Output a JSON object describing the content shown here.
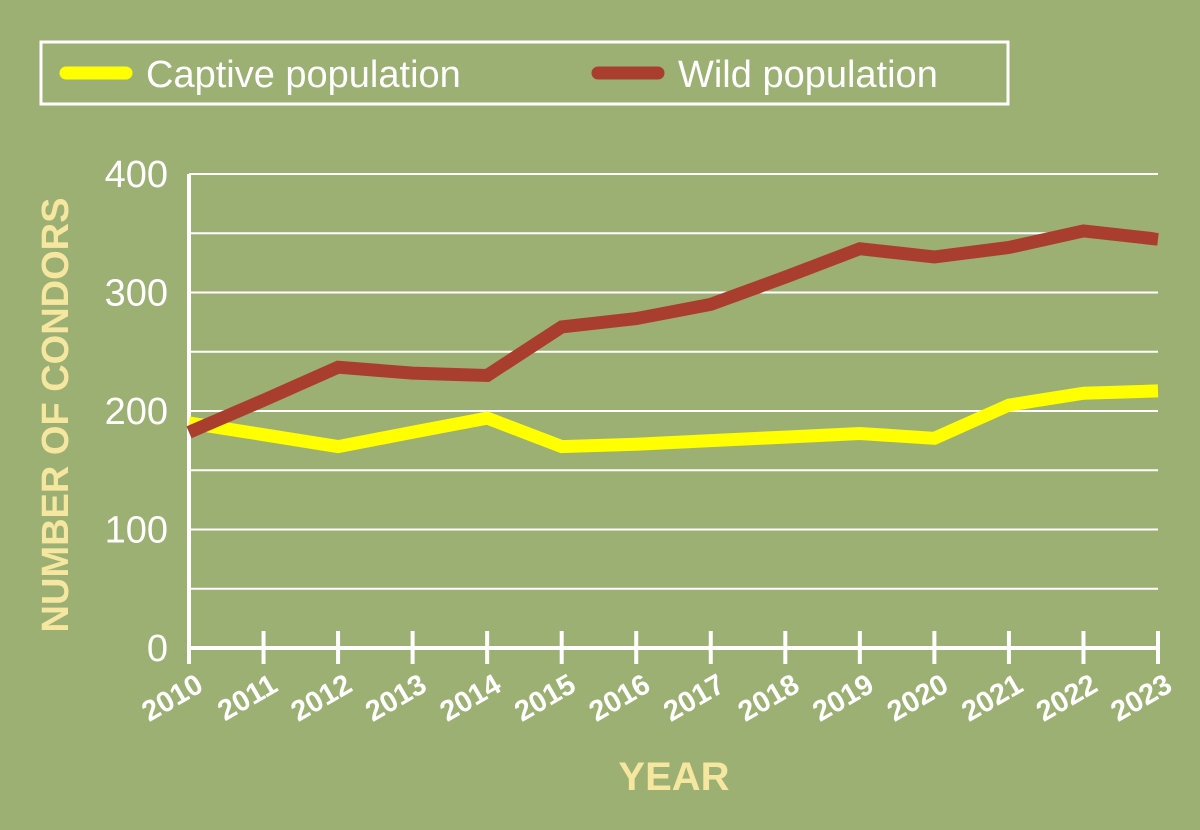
{
  "colors": {
    "background": "#9cb073",
    "grid": "#ffffff",
    "axis_title": "#f5e6a0",
    "captive": "#ffff00",
    "wild": "#aa3e2e"
  },
  "chart_data": {
    "type": "line",
    "title": "",
    "xlabel": "YEAR",
    "ylabel": "NUMBER OF CONDORS",
    "x": [
      "2010",
      "2011",
      "2012",
      "2013",
      "2014",
      "2015",
      "2016",
      "2017",
      "2018",
      "2019",
      "2020",
      "2021",
      "2022",
      "2023"
    ],
    "ylim": [
      0,
      400
    ],
    "yticks": [
      "0",
      "100",
      "200",
      "300",
      "400"
    ],
    "grid": true,
    "legend_position": "top",
    "series": [
      {
        "name": "Captive population",
        "color": "#ffff00",
        "values": [
          190,
          180,
          170,
          182,
          194,
          170,
          172,
          175,
          178,
          181,
          177,
          205,
          215,
          217
        ]
      },
      {
        "name": "Wild population",
        "color": "#aa3e2e",
        "values": [
          182,
          209,
          237,
          232,
          230,
          271,
          278,
          290,
          313,
          337,
          330,
          338,
          352,
          345
        ]
      }
    ]
  }
}
